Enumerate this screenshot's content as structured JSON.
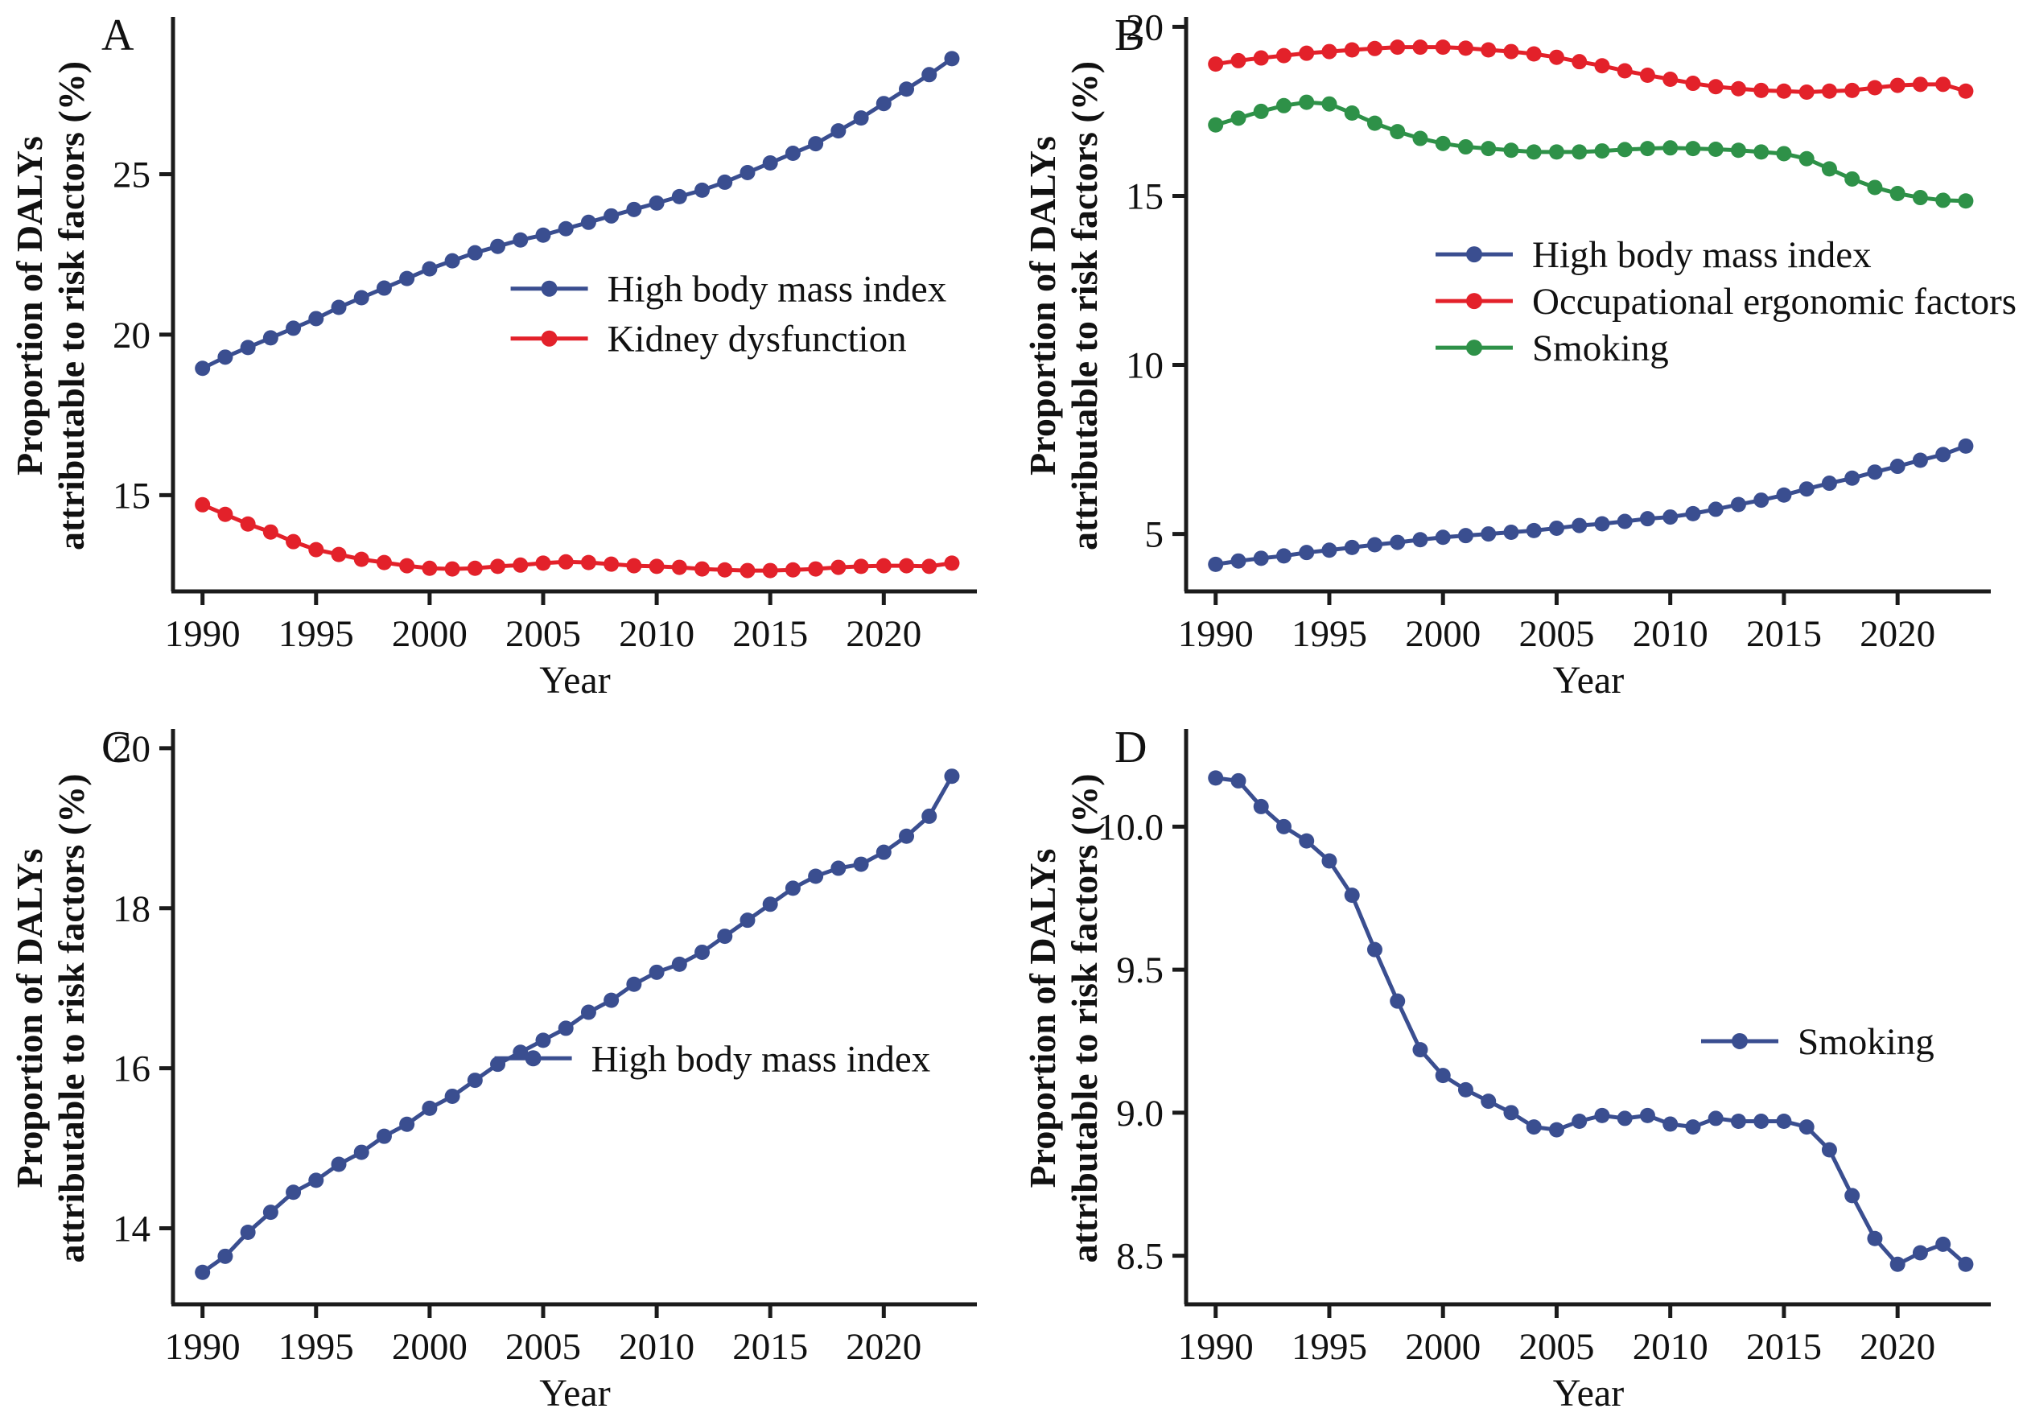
{
  "figure": {
    "ylabel_line1": "Proportion of DALYs",
    "ylabel_line2": "attributable to risk factors (%)",
    "xlabel": "Year",
    "colors": {
      "blue": "#3A4E90",
      "red": "#E3212A",
      "green": "#2E9148",
      "axis": "#1B1B1B"
    }
  },
  "years": [
    1990,
    1991,
    1992,
    1993,
    1994,
    1995,
    1996,
    1997,
    1998,
    1999,
    2000,
    2001,
    2002,
    2003,
    2004,
    2005,
    2006,
    2007,
    2008,
    2009,
    2010,
    2011,
    2012,
    2013,
    2014,
    2015,
    2016,
    2017,
    2018,
    2019,
    2020,
    2021,
    2022,
    2023
  ],
  "chart_data": [
    {
      "panel": "A",
      "type": "line",
      "xlabel": "Year",
      "ylabel": "Proportion of DALYs attributable to risk factors (%)",
      "grid": false,
      "xlim": [
        1988.7,
        2024.1
      ],
      "ylim": [
        12.0,
        29.8
      ],
      "xticks": [
        1990,
        1995,
        2000,
        2005,
        2010,
        2015,
        2020
      ],
      "xtick_labels": [
        "1990",
        "1995",
        "2000",
        "2005",
        "2010",
        "2015",
        "2020"
      ],
      "yticks": [
        15,
        20,
        25
      ],
      "ytick_labels": [
        "15",
        "20",
        "25"
      ],
      "legend": {
        "fx": 0.42,
        "fy": 0.47,
        "row_gap": 62
      },
      "series": [
        {
          "name": "High body mass index",
          "color_key": "blue",
          "values": [
            18.95,
            19.3,
            19.6,
            19.9,
            20.2,
            20.5,
            20.85,
            21.15,
            21.45,
            21.75,
            22.05,
            22.3,
            22.55,
            22.75,
            22.95,
            23.1,
            23.3,
            23.5,
            23.7,
            23.9,
            24.1,
            24.3,
            24.5,
            24.75,
            25.05,
            25.35,
            25.65,
            25.95,
            26.35,
            26.75,
            27.2,
            27.65,
            28.1,
            28.6
          ]
        },
        {
          "name": "Kidney dysfunction",
          "color_key": "red",
          "values": [
            14.7,
            14.4,
            14.1,
            13.85,
            13.55,
            13.3,
            13.15,
            13.0,
            12.9,
            12.8,
            12.72,
            12.7,
            12.72,
            12.78,
            12.82,
            12.88,
            12.92,
            12.9,
            12.85,
            12.8,
            12.78,
            12.75,
            12.7,
            12.67,
            12.65,
            12.65,
            12.67,
            12.7,
            12.75,
            12.78,
            12.8,
            12.8,
            12.78,
            12.88
          ]
        }
      ]
    },
    {
      "panel": "B",
      "type": "line",
      "xlabel": "Year",
      "ylabel": "Proportion of DALYs attributable to risk factors (%)",
      "grid": false,
      "xlim": [
        1988.7,
        2024.1
      ],
      "ylim": [
        3.3,
        20.2
      ],
      "xticks": [
        1990,
        1995,
        2000,
        2005,
        2010,
        2015,
        2020
      ],
      "xtick_labels": [
        "1990",
        "1995",
        "2000",
        "2005",
        "2010",
        "2015",
        "2020"
      ],
      "yticks": [
        5,
        10,
        15,
        20
      ],
      "ytick_labels": [
        "5",
        "10",
        "15",
        "20"
      ],
      "legend": {
        "fx": 0.31,
        "fy": 0.41,
        "row_gap": 58
      },
      "series": [
        {
          "name": "High body mass index",
          "color_key": "blue",
          "values": [
            4.1,
            4.2,
            4.28,
            4.35,
            4.45,
            4.52,
            4.6,
            4.68,
            4.75,
            4.83,
            4.9,
            4.95,
            5.0,
            5.05,
            5.1,
            5.17,
            5.25,
            5.3,
            5.37,
            5.45,
            5.5,
            5.6,
            5.73,
            5.87,
            6.0,
            6.15,
            6.33,
            6.5,
            6.65,
            6.83,
            7.0,
            7.18,
            7.35,
            7.6
          ]
        },
        {
          "name": "Occupational ergonomic factors",
          "color_key": "red",
          "values": [
            18.9,
            19.0,
            19.08,
            19.15,
            19.22,
            19.27,
            19.32,
            19.36,
            19.4,
            19.4,
            19.4,
            19.37,
            19.32,
            19.27,
            19.2,
            19.1,
            18.97,
            18.85,
            18.7,
            18.57,
            18.45,
            18.33,
            18.23,
            18.17,
            18.12,
            18.1,
            18.07,
            18.1,
            18.12,
            18.2,
            18.27,
            18.3,
            18.3,
            18.1
          ]
        },
        {
          "name": "Smoking",
          "color_key": "green",
          "values": [
            17.1,
            17.3,
            17.5,
            17.67,
            17.77,
            17.72,
            17.45,
            17.15,
            16.9,
            16.7,
            16.55,
            16.45,
            16.4,
            16.35,
            16.3,
            16.3,
            16.3,
            16.33,
            16.37,
            16.4,
            16.42,
            16.4,
            16.38,
            16.35,
            16.3,
            16.25,
            16.1,
            15.8,
            15.5,
            15.25,
            15.07,
            14.95,
            14.87,
            14.85
          ]
        }
      ]
    },
    {
      "panel": "C",
      "type": "line",
      "xlabel": "Year",
      "ylabel": "Proportion of DALYs attributable to risk factors (%)",
      "grid": false,
      "xlim": [
        1988.7,
        2024.1
      ],
      "ylim": [
        13.05,
        20.2
      ],
      "xticks": [
        1990,
        1995,
        2000,
        2005,
        2010,
        2015,
        2020
      ],
      "xtick_labels": [
        "1990",
        "1995",
        "2000",
        "2005",
        "2010",
        "2015",
        "2020"
      ],
      "yticks": [
        14,
        16,
        18,
        20
      ],
      "ytick_labels": [
        "14",
        "16",
        "18",
        "20"
      ],
      "legend": {
        "fx": 0.4,
        "fy": 0.57,
        "row_gap": 62
      },
      "series": [
        {
          "name": "High body mass index",
          "color_key": "blue",
          "values": [
            13.45,
            13.65,
            13.95,
            14.2,
            14.45,
            14.6,
            14.8,
            14.95,
            15.15,
            15.3,
            15.5,
            15.65,
            15.85,
            16.05,
            16.2,
            16.35,
            16.5,
            16.7,
            16.85,
            17.05,
            17.2,
            17.3,
            17.45,
            17.65,
            17.85,
            18.05,
            18.25,
            18.4,
            18.5,
            18.55,
            18.7,
            18.9,
            19.15,
            19.65
          ]
        }
      ]
    },
    {
      "panel": "D",
      "type": "line",
      "xlabel": "Year",
      "ylabel": "Proportion of DALYs attributable to risk factors (%)",
      "grid": false,
      "xlim": [
        1988.7,
        2024.1
      ],
      "ylim": [
        8.33,
        10.33
      ],
      "xticks": [
        1990,
        1995,
        2000,
        2005,
        2010,
        2015,
        2020
      ],
      "xtick_labels": [
        "1990",
        "1995",
        "2000",
        "2005",
        "2010",
        "2015",
        "2020"
      ],
      "yticks": [
        8.5,
        9.0,
        9.5,
        10.0
      ],
      "ytick_labels": [
        "8.5",
        "9.0",
        "9.5",
        "10.0"
      ],
      "legend": {
        "fx": 0.64,
        "fy": 0.54,
        "row_gap": 62
      },
      "series": [
        {
          "name": "Smoking",
          "color_key": "blue",
          "values": [
            10.17,
            10.16,
            10.07,
            10.0,
            9.95,
            9.88,
            9.76,
            9.57,
            9.39,
            9.22,
            9.13,
            9.08,
            9.04,
            9.0,
            8.95,
            8.94,
            8.97,
            8.99,
            8.98,
            8.99,
            8.96,
            8.95,
            8.98,
            8.97,
            8.97,
            8.97,
            8.95,
            8.87,
            8.71,
            8.56,
            8.47,
            8.51,
            8.54,
            8.47
          ]
        }
      ]
    }
  ]
}
